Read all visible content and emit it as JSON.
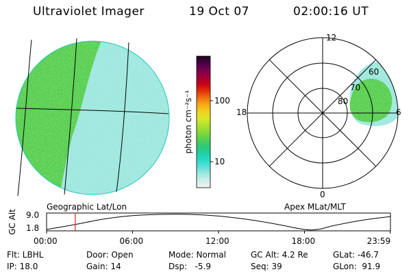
{
  "header": {
    "instrument": "Ultraviolet Imager",
    "date": "19 Oct 07",
    "time": "02:00:16 UT"
  },
  "colorbar": {
    "unit_label": "photon cm⁻²s⁻¹",
    "tick_labels": [
      "100",
      "10"
    ],
    "colors": [
      "#f2f2f2",
      "#cfeee9",
      "#9fe8df",
      "#5fe0d8",
      "#2ad8cc",
      "#20d0a0",
      "#30c878",
      "#58d050",
      "#88d838",
      "#b0e030",
      "#d8e828",
      "#f0d020",
      "#f8a818",
      "#f07010",
      "#e03008",
      "#c80018",
      "#a00038",
      "#780050",
      "#480048",
      "#200018"
    ],
    "icon": "colorbar-gradient"
  },
  "left_panel": {
    "label": "Geographic Lat/Lon",
    "colors": {
      "dayside": "#58d050",
      "nightside": "#9fe8df",
      "edge": "#20c8b8",
      "grid": "#000000"
    }
  },
  "right_panel": {
    "label": "Apex MLat/MLT",
    "mlt_labels": {
      "top": "12",
      "left": "18",
      "right": "6",
      "bottom": "0"
    },
    "lat_labels": [
      "60",
      "70",
      "80"
    ],
    "colors": {
      "oval": "#58d050",
      "oval_edge": "#9fe8df",
      "grid": "#000000"
    }
  },
  "altitude_plot": {
    "ylabel": "GC Alt",
    "y_ticks": [
      "9.0",
      "1.8"
    ],
    "x_ticks": [
      "00:00",
      "06:00",
      "12:00",
      "18:00",
      "23:59"
    ],
    "current_time_hours": 2.0,
    "marker_color": "#e02020",
    "orbit": [
      {
        "t": 0.0,
        "alt": 1.8
      },
      {
        "t": 2.0,
        "alt": 4.2
      },
      {
        "t": 4.0,
        "alt": 6.8
      },
      {
        "t": 6.0,
        "alt": 8.4
      },
      {
        "t": 8.0,
        "alt": 9.0
      },
      {
        "t": 10.0,
        "alt": 9.0
      },
      {
        "t": 12.0,
        "alt": 8.2
      },
      {
        "t": 14.0,
        "alt": 6.6
      },
      {
        "t": 16.0,
        "alt": 4.4
      },
      {
        "t": 18.0,
        "alt": 1.8
      },
      {
        "t": 19.0,
        "alt": 1.9
      },
      {
        "t": 20.0,
        "alt": 3.6
      },
      {
        "t": 22.0,
        "alt": 6.2
      },
      {
        "t": 23.98,
        "alt": 8.0
      }
    ]
  },
  "info": {
    "row1": {
      "filter": "Flt: LBHL",
      "door": "Door: Open",
      "mode": "Mode: Normal",
      "gc_alt": "GC Alt: 4.2 Re",
      "glat": "GLat: -46.7"
    },
    "row2": {
      "ip": "IP: 18.0",
      "gain": "Gain: 14",
      "dsp": "Dsp:   -5.9",
      "seq": "Seq: 39",
      "glon": "GLon:  91.9"
    }
  }
}
